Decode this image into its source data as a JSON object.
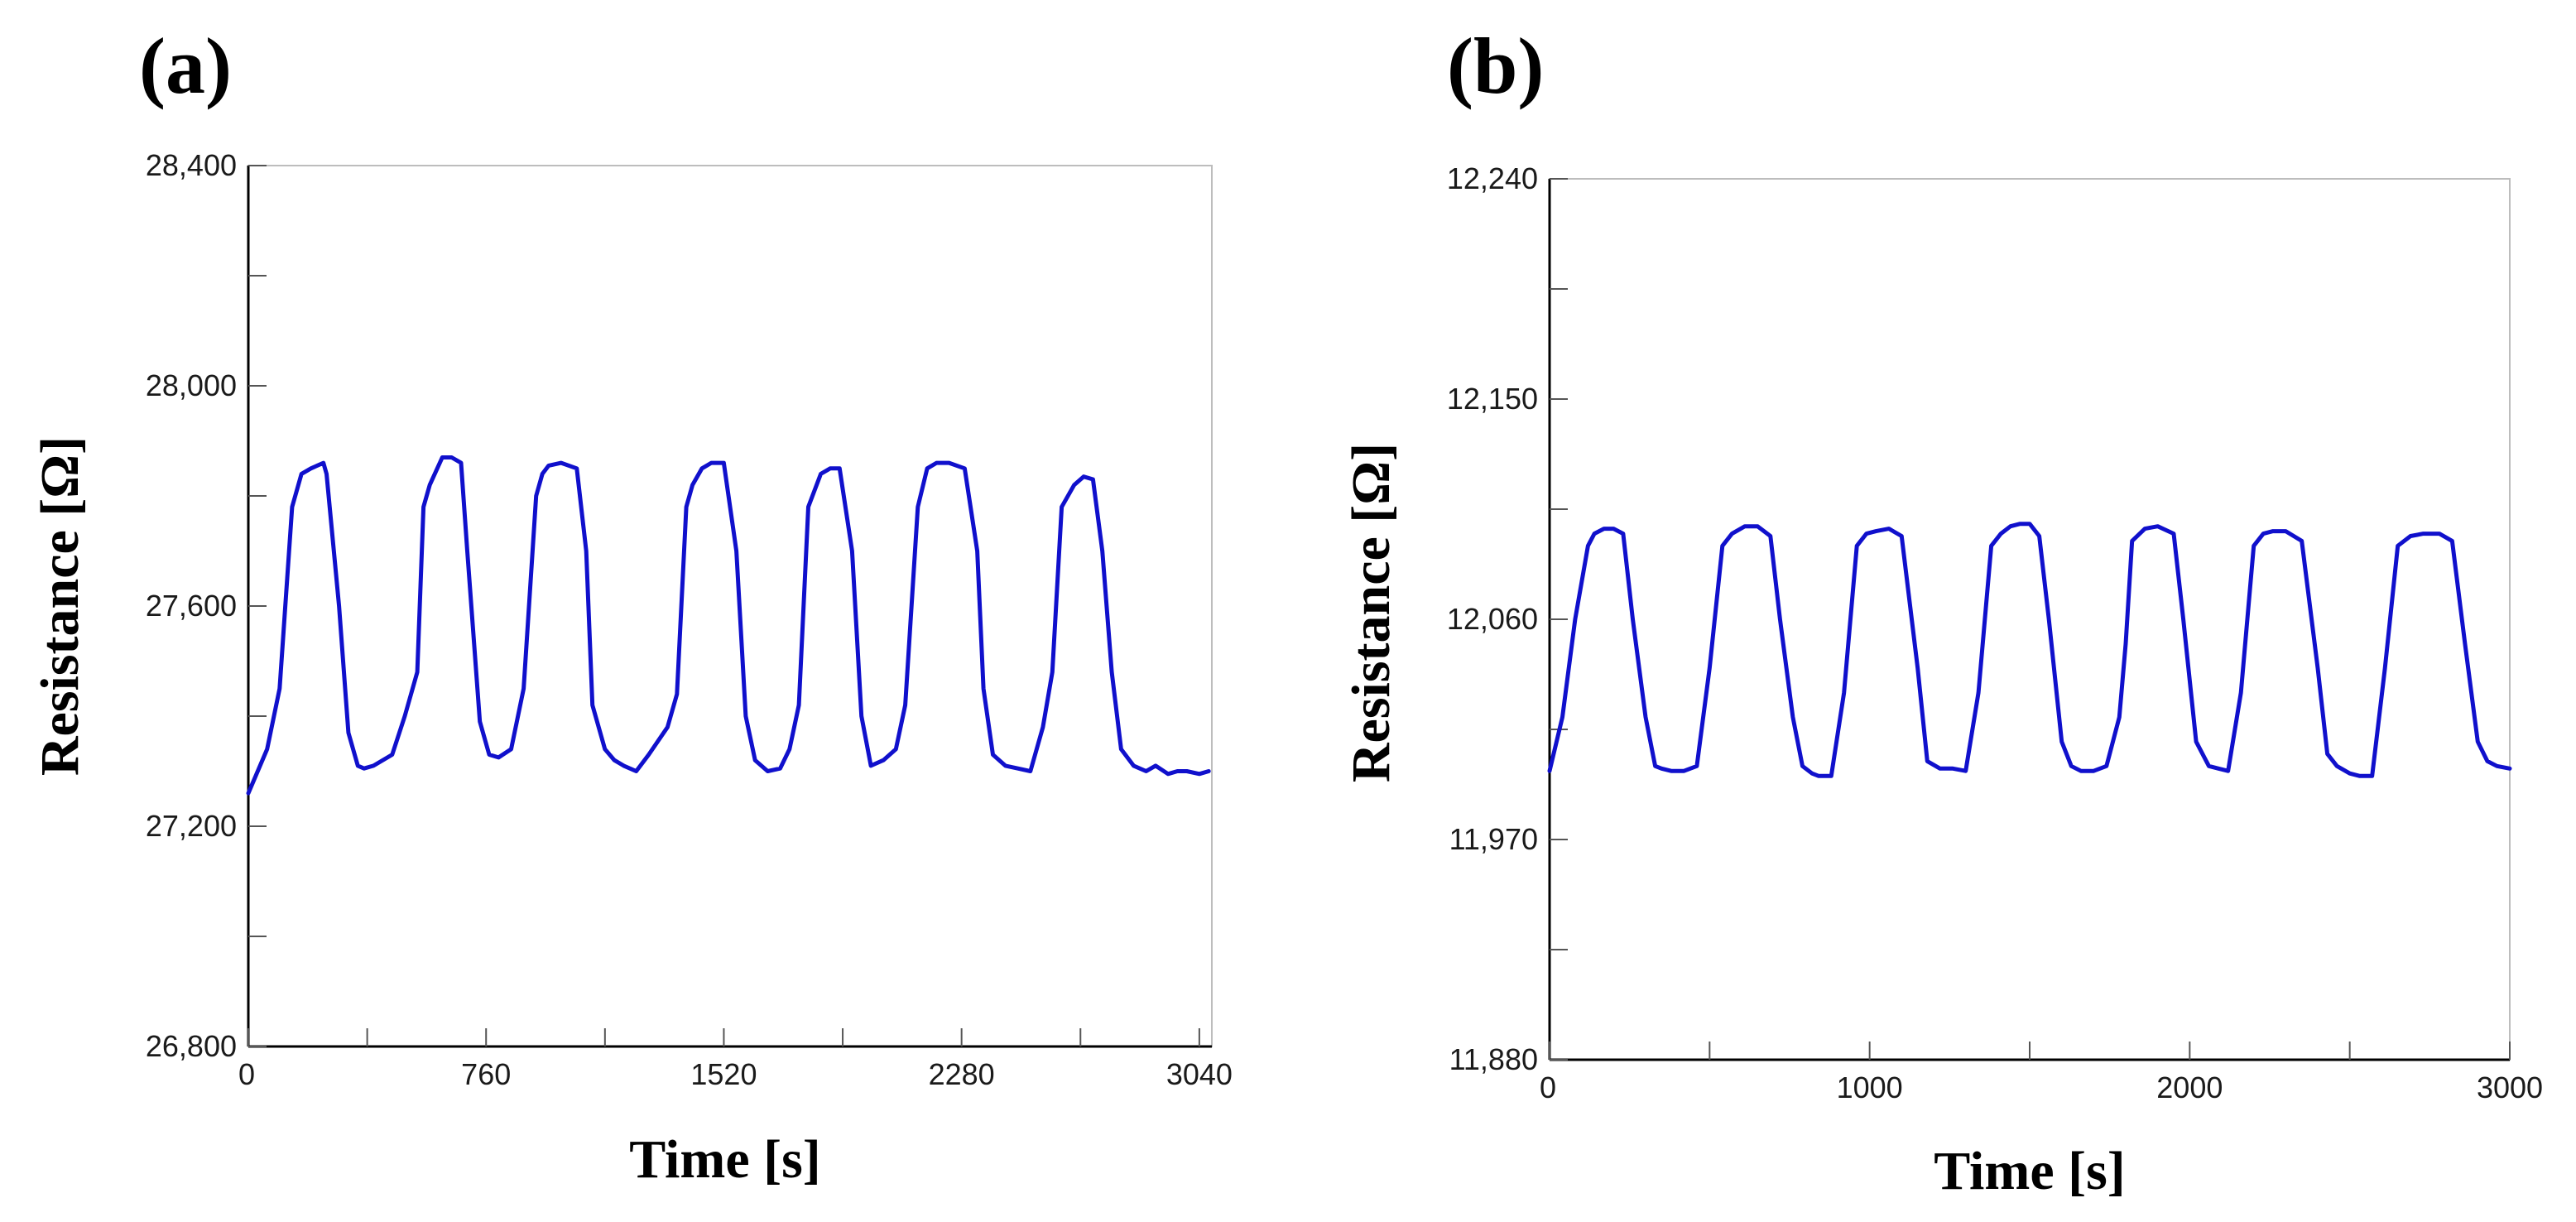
{
  "chart_data": [
    {
      "type": "line",
      "panel_label": "(a)",
      "xlabel": "Time [s]",
      "ylabel": "Resistance [Ω]",
      "xlim": [
        0,
        3080
      ],
      "ylim": [
        26800,
        28400
      ],
      "xticks": [
        0,
        760,
        1520,
        2280,
        3040
      ],
      "xtick_labels": [
        "0",
        "760",
        "1520",
        "2280",
        "3040"
      ],
      "xminor_ticks": [
        380,
        1140,
        1900,
        2660
      ],
      "yticks": [
        26800,
        27200,
        27600,
        28000,
        28400
      ],
      "ytick_labels": [
        "26,800",
        "27,200",
        "27,600",
        "28,000",
        "28,400"
      ],
      "yminor_ticks": [
        27000,
        27400,
        27800,
        28200
      ],
      "grid": false,
      "series": [
        {
          "name": "Resistance",
          "color": "#1010cc",
          "x": [
            0,
            60,
            100,
            140,
            170,
            200,
            240,
            250,
            290,
            320,
            350,
            370,
            400,
            460,
            500,
            540,
            560,
            580,
            620,
            650,
            680,
            700,
            740,
            770,
            800,
            840,
            880,
            920,
            940,
            960,
            1000,
            1050,
            1080,
            1100,
            1140,
            1170,
            1200,
            1240,
            1280,
            1340,
            1370,
            1400,
            1420,
            1450,
            1480,
            1520,
            1560,
            1590,
            1620,
            1660,
            1700,
            1730,
            1760,
            1790,
            1830,
            1860,
            1890,
            1930,
            1960,
            1990,
            2030,
            2070,
            2100,
            2140,
            2170,
            2200,
            2240,
            2290,
            2330,
            2350,
            2380,
            2420,
            2460,
            2500,
            2540,
            2570,
            2600,
            2640,
            2670,
            2700,
            2730,
            2760,
            2790,
            2830,
            2870,
            2900,
            2940,
            2970,
            3000,
            3040,
            3070
          ],
          "y": [
            27260,
            27340,
            27450,
            27780,
            27840,
            27850,
            27860,
            27840,
            27600,
            27370,
            27310,
            27305,
            27310,
            27330,
            27400,
            27480,
            27780,
            27820,
            27870,
            27870,
            27860,
            27700,
            27390,
            27330,
            27325,
            27340,
            27450,
            27800,
            27840,
            27855,
            27860,
            27850,
            27700,
            27420,
            27340,
            27320,
            27310,
            27300,
            27330,
            27380,
            27440,
            27780,
            27820,
            27850,
            27860,
            27860,
            27700,
            27400,
            27320,
            27300,
            27305,
            27340,
            27420,
            27780,
            27840,
            27850,
            27850,
            27700,
            27400,
            27310,
            27320,
            27340,
            27420,
            27780,
            27850,
            27860,
            27860,
            27850,
            27700,
            27450,
            27330,
            27310,
            27305,
            27300,
            27380,
            27480,
            27780,
            27820,
            27835,
            27830,
            27700,
            27480,
            27340,
            27310,
            27300,
            27310,
            27295,
            27300,
            27300,
            27295,
            27300
          ]
        }
      ]
    },
    {
      "type": "line",
      "panel_label": "(b)",
      "xlabel": "Time [s]",
      "ylabel": "Resistance [Ω]",
      "xlim": [
        0,
        3000
      ],
      "ylim": [
        11880,
        12240
      ],
      "xticks": [
        0,
        1000,
        2000,
        3000
      ],
      "xtick_labels": [
        "0",
        "1000",
        "2000",
        "3000"
      ],
      "xminor_ticks": [
        500,
        1500,
        2500
      ],
      "yticks": [
        11880,
        11970,
        12060,
        12150,
        12240
      ],
      "ytick_labels": [
        "11,880",
        "11,970",
        "12,060",
        "12,150",
        "12,240"
      ],
      "yminor_ticks": [
        11925,
        12015,
        12105,
        12195
      ],
      "grid": false,
      "series": [
        {
          "name": "Resistance",
          "color": "#1010cc",
          "x": [
            0,
            40,
            80,
            120,
            140,
            170,
            200,
            230,
            260,
            300,
            330,
            350,
            380,
            420,
            460,
            500,
            540,
            570,
            610,
            650,
            690,
            720,
            760,
            790,
            820,
            840,
            880,
            920,
            960,
            990,
            1020,
            1060,
            1100,
            1150,
            1180,
            1220,
            1260,
            1300,
            1340,
            1380,
            1410,
            1440,
            1470,
            1500,
            1530,
            1560,
            1600,
            1630,
            1660,
            1700,
            1740,
            1780,
            1800,
            1820,
            1860,
            1900,
            1950,
            1980,
            2020,
            2060,
            2090,
            2120,
            2160,
            2200,
            2230,
            2260,
            2300,
            2350,
            2400,
            2430,
            2460,
            2500,
            2530,
            2570,
            2610,
            2650,
            2690,
            2730,
            2780,
            2820,
            2860,
            2900,
            2930,
            2960,
            3000
          ],
          "y": [
            11998,
            12020,
            12060,
            12090,
            12095,
            12097,
            12097,
            12095,
            12060,
            12020,
            12000,
            11999,
            11998,
            11998,
            12000,
            12040,
            12090,
            12095,
            12098,
            12098,
            12094,
            12060,
            12020,
            12000,
            11997,
            11996,
            11996,
            12030,
            12090,
            12095,
            12096,
            12097,
            12094,
            12040,
            12002,
            11999,
            11999,
            11998,
            12030,
            12090,
            12095,
            12098,
            12099,
            12099,
            12094,
            12060,
            12010,
            12000,
            11998,
            11998,
            12000,
            12020,
            12050,
            12092,
            12097,
            12098,
            12095,
            12060,
            12010,
            12000,
            11999,
            11998,
            12030,
            12090,
            12095,
            12096,
            12096,
            12092,
            12040,
            12005,
            12000,
            11997,
            11996,
            11996,
            12040,
            12090,
            12094,
            12095,
            12095,
            12092,
            12050,
            12010,
            12002,
            12000,
            11999
          ]
        }
      ]
    }
  ]
}
